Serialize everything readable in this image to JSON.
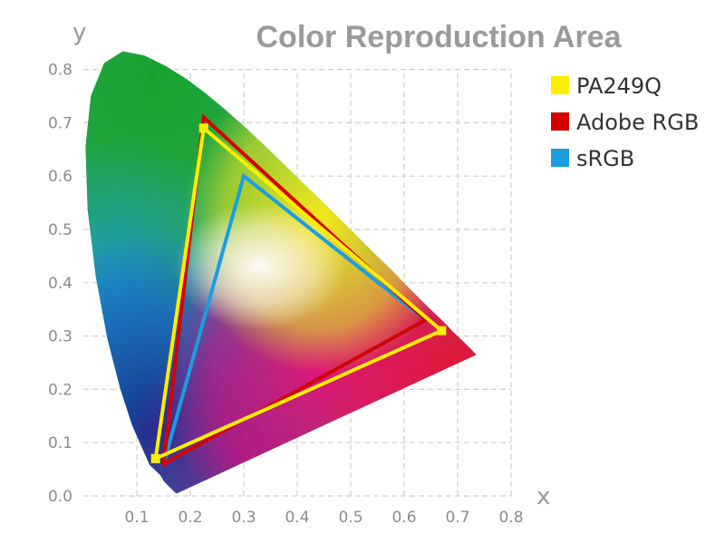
{
  "chart_data": {
    "type": "scatter",
    "title": "Color Reproduction Area",
    "xlabel": "x",
    "ylabel": "y",
    "xlim": [
      0,
      0.8
    ],
    "ylim": [
      0,
      0.8
    ],
    "x_ticks": [
      "0.1",
      "0.2",
      "0.3",
      "0.4",
      "0.5",
      "0.6",
      "0.7",
      "0.8"
    ],
    "y_ticks": [
      "0.0",
      "0.1",
      "0.2",
      "0.3",
      "0.4",
      "0.5",
      "0.6",
      "0.7",
      "0.8"
    ],
    "grid": true,
    "legend_position": "top-right",
    "spectral_locus": [
      [
        0.175,
        0.005
      ],
      [
        0.174,
        0.005
      ],
      [
        0.173,
        0.005
      ],
      [
        0.172,
        0.006
      ],
      [
        0.171,
        0.007
      ],
      [
        0.169,
        0.009
      ],
      [
        0.166,
        0.012
      ],
      [
        0.161,
        0.017
      ],
      [
        0.151,
        0.027
      ],
      [
        0.144,
        0.039
      ],
      [
        0.124,
        0.058
      ],
      [
        0.091,
        0.133
      ],
      [
        0.069,
        0.201
      ],
      [
        0.045,
        0.295
      ],
      [
        0.023,
        0.413
      ],
      [
        0.008,
        0.538
      ],
      [
        0.004,
        0.655
      ],
      [
        0.014,
        0.75
      ],
      [
        0.039,
        0.812
      ],
      [
        0.074,
        0.834
      ],
      [
        0.114,
        0.826
      ],
      [
        0.155,
        0.806
      ],
      [
        0.193,
        0.782
      ],
      [
        0.23,
        0.754
      ],
      [
        0.266,
        0.724
      ],
      [
        0.302,
        0.692
      ],
      [
        0.337,
        0.659
      ],
      [
        0.373,
        0.624
      ],
      [
        0.409,
        0.589
      ],
      [
        0.444,
        0.555
      ],
      [
        0.479,
        0.52
      ],
      [
        0.512,
        0.487
      ],
      [
        0.544,
        0.455
      ],
      [
        0.575,
        0.425
      ],
      [
        0.603,
        0.396
      ],
      [
        0.627,
        0.372
      ],
      [
        0.648,
        0.351
      ],
      [
        0.666,
        0.334
      ],
      [
        0.68,
        0.32
      ],
      [
        0.691,
        0.308
      ],
      [
        0.701,
        0.299
      ],
      [
        0.714,
        0.286
      ],
      [
        0.725,
        0.275
      ],
      [
        0.735,
        0.265
      ]
    ],
    "series": [
      {
        "name": "PA249Q",
        "color": "#ffee00",
        "points": [
          [
            0.225,
            0.69
          ],
          [
            0.67,
            0.31
          ],
          [
            0.135,
            0.07
          ]
        ]
      },
      {
        "name": "Adobe RGB",
        "color": "#d40000",
        "points": [
          [
            0.225,
            0.71
          ],
          [
            0.64,
            0.33
          ],
          [
            0.15,
            0.06
          ]
        ]
      },
      {
        "name": "sRGB",
        "color": "#1a9ee0",
        "points": [
          [
            0.3,
            0.6
          ],
          [
            0.64,
            0.33
          ],
          [
            0.15,
            0.06
          ]
        ]
      }
    ]
  }
}
